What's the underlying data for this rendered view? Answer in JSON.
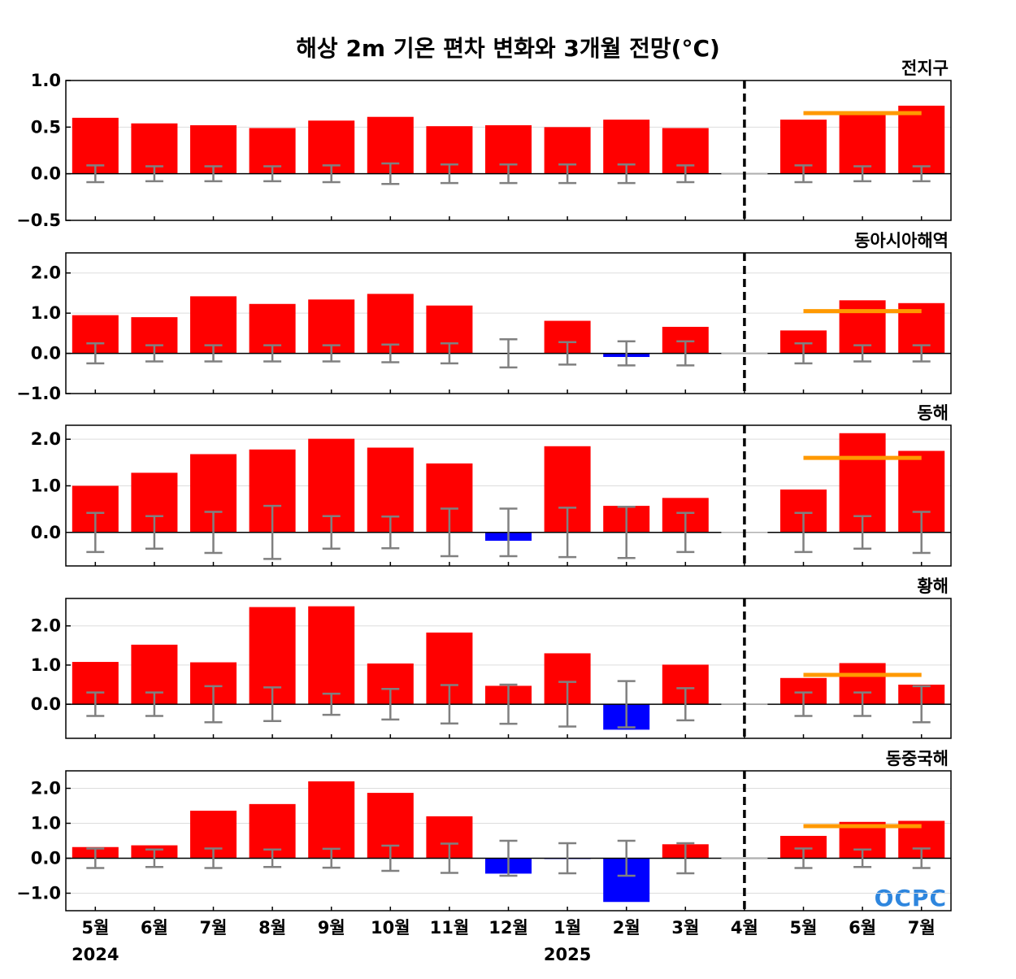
{
  "title": "해상 2m 기온 편차 변화와 3개월 전망(°C)",
  "logo_text": "OCPC",
  "colors": {
    "positive_bar": "#ff0000",
    "negative_bar": "#0000ff",
    "error_bar": "#808080",
    "forecast_line": "#ff9900",
    "divider": "#000000"
  },
  "months": [
    "5월",
    "6월",
    "7월",
    "8월",
    "9월",
    "10월",
    "11월",
    "12월",
    "1월",
    "2월",
    "3월",
    "4월",
    "5월",
    "6월",
    "7월"
  ],
  "year_labels": [
    {
      "label": "2024",
      "month_index": 0
    },
    {
      "label": "2025",
      "month_index": 8
    }
  ],
  "divider_month_index": 11,
  "chart_data": [
    {
      "type": "bar",
      "title": "전지구",
      "ylim": [
        -0.5,
        1.0
      ],
      "yticks": [
        -0.5,
        0.0,
        0.5,
        1.0
      ],
      "tick_labels": [
        "−0.5",
        "0.0",
        "0.5",
        "1.0"
      ],
      "grid": true,
      "values": [
        0.6,
        0.54,
        0.52,
        0.49,
        0.57,
        0.61,
        0.51,
        0.52,
        0.5,
        0.58,
        0.49,
        0,
        0.58,
        0.65,
        0.73
      ],
      "error_bars": [
        0.09,
        0.08,
        0.08,
        0.08,
        0.09,
        0.11,
        0.1,
        0.1,
        0.1,
        0.1,
        0.09,
        null,
        0.09,
        0.08,
        0.08
      ],
      "forecast_value": 0.65,
      "forecast_range": [
        12,
        14
      ]
    },
    {
      "type": "bar",
      "title": "동아시아해역",
      "ylim": [
        -1.0,
        2.5
      ],
      "yticks": [
        -1.0,
        0.0,
        1.0,
        2.0
      ],
      "tick_labels": [
        "−1.0",
        "0.0",
        "1.0",
        "2.0"
      ],
      "grid": true,
      "values": [
        0.95,
        0.9,
        1.42,
        1.23,
        1.34,
        1.48,
        1.19,
        0.0,
        0.81,
        -0.09,
        0.66,
        0,
        0.57,
        1.32,
        1.25
      ],
      "error_bars": [
        0.25,
        0.2,
        0.2,
        0.2,
        0.2,
        0.22,
        0.25,
        0.35,
        0.28,
        0.3,
        0.3,
        null,
        0.25,
        0.2,
        0.2
      ],
      "forecast_value": 1.05,
      "forecast_range": [
        12,
        14
      ]
    },
    {
      "type": "bar",
      "title": "동해",
      "ylim": [
        -0.72,
        2.3
      ],
      "yticks": [
        0.0,
        1.0,
        2.0
      ],
      "tick_labels": [
        "0.0",
        "1.0",
        "2.0"
      ],
      "grid": true,
      "values": [
        1.0,
        1.28,
        1.68,
        1.78,
        2.01,
        1.82,
        1.48,
        -0.18,
        1.85,
        0.57,
        0.74,
        0,
        0.92,
        2.13,
        1.75
      ],
      "error_bars": [
        0.42,
        0.35,
        0.44,
        0.57,
        0.35,
        0.34,
        0.51,
        0.51,
        0.53,
        0.55,
        0.42,
        null,
        0.42,
        0.35,
        0.44
      ],
      "forecast_value": 1.6,
      "forecast_range": [
        12,
        14
      ]
    },
    {
      "type": "bar",
      "title": "황해",
      "ylim": [
        -0.87,
        2.7
      ],
      "yticks": [
        0.0,
        1.0,
        2.0
      ],
      "tick_labels": [
        "0.0",
        "1.0",
        "2.0"
      ],
      "grid": true,
      "values": [
        1.08,
        1.52,
        1.07,
        2.48,
        2.5,
        1.04,
        1.83,
        0.47,
        1.3,
        -0.65,
        1.01,
        0,
        0.67,
        1.05,
        0.5
      ],
      "error_bars": [
        0.3,
        0.3,
        0.46,
        0.43,
        0.27,
        0.39,
        0.49,
        0.5,
        0.57,
        0.59,
        0.41,
        null,
        0.3,
        0.3,
        0.46
      ],
      "forecast_value": 0.75,
      "forecast_range": [
        12,
        14
      ]
    },
    {
      "type": "bar",
      "title": "동중국해",
      "ylim": [
        -1.5,
        2.5
      ],
      "yticks": [
        -1.0,
        0.0,
        1.0,
        2.0
      ],
      "tick_labels": [
        "−1.0",
        "0.0",
        "1.0",
        "2.0"
      ],
      "grid": true,
      "values": [
        0.32,
        0.37,
        1.36,
        1.55,
        2.2,
        1.87,
        1.2,
        -0.44,
        -0.02,
        -1.25,
        0.4,
        0,
        0.64,
        1.04,
        1.07
      ],
      "error_bars": [
        0.28,
        0.25,
        0.28,
        0.25,
        0.27,
        0.36,
        0.42,
        0.5,
        0.43,
        0.5,
        0.43,
        null,
        0.28,
        0.25,
        0.28
      ],
      "forecast_value": 0.92,
      "forecast_range": [
        12,
        14
      ]
    }
  ]
}
